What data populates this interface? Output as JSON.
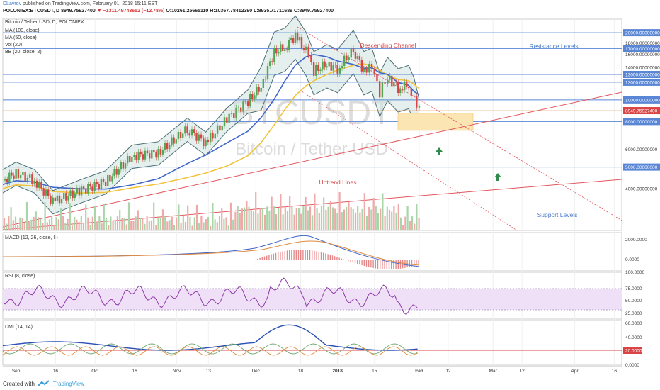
{
  "header": {
    "author": "DLavrov",
    "published_text": "published on TradingView.com, February 01, 2018 15:11 EST",
    "symbol_line": "POLONIEX:BTCUSDT, D",
    "last": "8949.75927400",
    "change": "−1311.49743652 (−12.78%)",
    "ohlc": "O:10261.25665110 H:10367.78412390 L:8935.71711689 C:8949.75927400"
  },
  "legend": {
    "title": "Bitcoin / Tether USD, D, POLONIEX",
    "ma100": "MA (100, close)",
    "ma50": "MA (50, close)",
    "vol": "Vol (20)",
    "bb": "BB (20, close, 2)"
  },
  "watermark": {
    "symbol": "BTCUSDT",
    "name": "Bitcoin / Tether USD"
  },
  "annotations": {
    "descending": "Descending Channel",
    "resistance": "Resistance Levels",
    "uptrend": "Uptrend Lines",
    "support": "Support Levels"
  },
  "panes": {
    "macd": {
      "label": "MACD (12, 26, close, 9)",
      "ticks": [
        "2000.0000",
        "0.0000"
      ]
    },
    "rsi": {
      "label": "RSI (8, close)",
      "ticks": [
        "100.0000",
        "75.0000",
        "50.0000",
        "25.0000"
      ]
    },
    "dmi": {
      "label": "DMI (14, 14)",
      "ticks": [
        "60.0000",
        "40.0000",
        "20.0000",
        "0.0000"
      ]
    }
  },
  "footer": {
    "created_with": "Created with",
    "brand": "TradingView"
  },
  "colors": {
    "up": "#53a653",
    "down": "#d94444",
    "ma50": "#3f66c8",
    "ma100": "#f2c43a",
    "bb": "#4a6f74",
    "bbfill": "#cfe4e0",
    "resistance": "#5a86d6",
    "trend": "#e2575f",
    "rsifill": "#efe0f7",
    "rsiline": "#8c3aa6",
    "zone": "#fbe6b3"
  },
  "chart_data": {
    "type": "candlestick",
    "y_scale": "log",
    "ylim": [
      2600,
      23000
    ],
    "x_ticks": [
      "Sep",
      "16",
      "Oct",
      "16",
      "Nov",
      "13",
      "Dec",
      "18",
      "2018",
      "15",
      "Feb",
      "12",
      "Mar",
      "12",
      "Apr",
      "16"
    ],
    "y_ticks": [
      4000,
      6000,
      8000,
      10000,
      12000,
      14000,
      16000,
      18000,
      20000
    ],
    "y_tick_labels": [
      "4000.00000000",
      "6000.00000000",
      "8000.00000000",
      "10000.00000000",
      "12000.00000000",
      "14000.00000000",
      "16000.00000000",
      "18000.00000000",
      "20000.00000000"
    ],
    "horizontal_levels": [
      20000,
      17000,
      13000,
      12000,
      10000,
      8000,
      5000
    ],
    "horizontal_level_labels": [
      "20000.00000000",
      "17000.00000000",
      "13000.00000000",
      "12000.00000000",
      "10000.00000000",
      "8000.00000000",
      "5000.00000000"
    ],
    "last_price": 8949.759274,
    "last_price_label": "8949.75927400",
    "price_path": [
      {
        "date": "2017-08-27",
        "close": 4350
      },
      {
        "date": "2017-09-01",
        "close": 4700
      },
      {
        "date": "2017-09-08",
        "close": 4350
      },
      {
        "date": "2017-09-15",
        "close": 3500
      },
      {
        "date": "2017-09-25",
        "close": 3900
      },
      {
        "date": "2017-10-05",
        "close": 4300
      },
      {
        "date": "2017-10-15",
        "close": 5600
      },
      {
        "date": "2017-10-25",
        "close": 5800
      },
      {
        "date": "2017-11-05",
        "close": 7400
      },
      {
        "date": "2017-11-12",
        "close": 6400
      },
      {
        "date": "2017-11-20",
        "close": 8200
      },
      {
        "date": "2017-11-28",
        "close": 9900
      },
      {
        "date": "2017-12-03",
        "close": 11500
      },
      {
        "date": "2017-12-08",
        "close": 16500
      },
      {
        "date": "2017-12-12",
        "close": 17200
      },
      {
        "date": "2017-12-16",
        "close": 19500
      },
      {
        "date": "2017-12-20",
        "close": 16500
      },
      {
        "date": "2017-12-23",
        "close": 13500
      },
      {
        "date": "2017-12-28",
        "close": 14500
      },
      {
        "date": "2018-01-01",
        "close": 13800
      },
      {
        "date": "2018-01-07",
        "close": 16800
      },
      {
        "date": "2018-01-11",
        "close": 13500
      },
      {
        "date": "2018-01-14",
        "close": 14000
      },
      {
        "date": "2018-01-17",
        "close": 10800
      },
      {
        "date": "2018-01-20",
        "close": 12700
      },
      {
        "date": "2018-01-24",
        "close": 11300
      },
      {
        "date": "2018-01-28",
        "close": 11700
      },
      {
        "date": "2018-01-30",
        "close": 10300
      },
      {
        "date": "2018-02-01",
        "close": 8950
      }
    ]
  }
}
